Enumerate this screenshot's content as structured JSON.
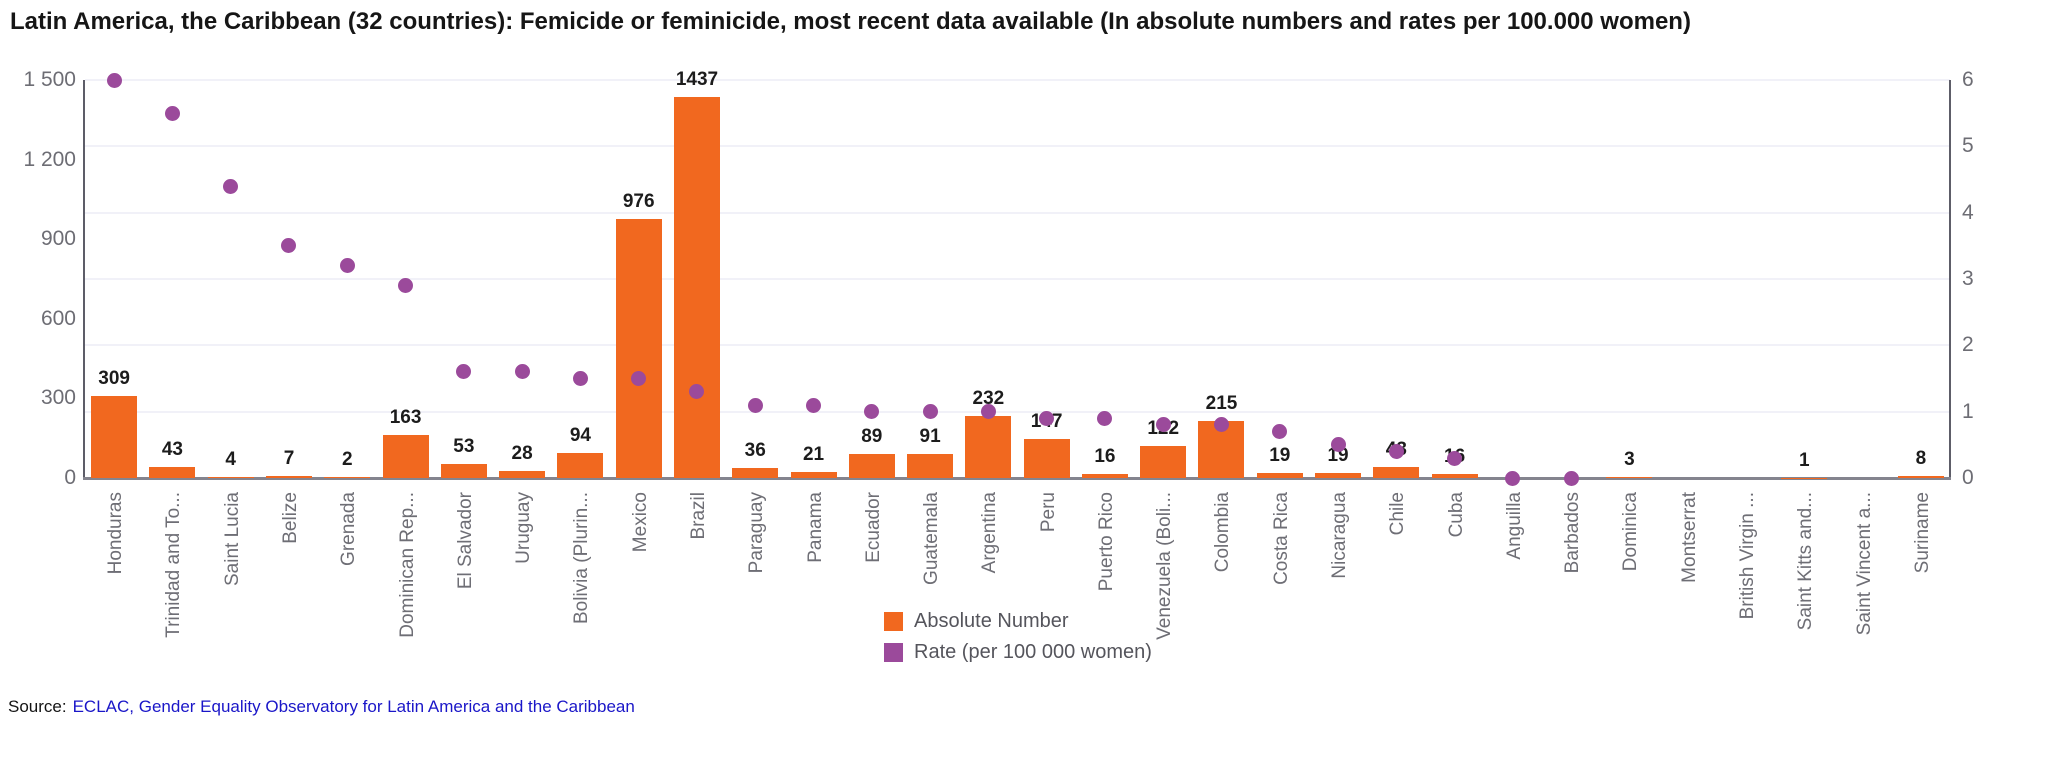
{
  "title": "Latin America, the Caribbean (32 countries): Femicide or feminicide, most recent data available (In absolute numbers and rates per 100.000 women)",
  "legend": {
    "absolute_label": "Absolute Number",
    "rate_label": "Rate (per 100 000 women)"
  },
  "source": {
    "prefix": "Source:",
    "link_text": "ECLAC, Gender Equality Observatory for Latin America and the Caribbean"
  },
  "colors": {
    "bar": "#f1681f",
    "dot": "#9b4a9b",
    "gridline": "#f1f1f8",
    "axis": "#5d5d68",
    "baseline": "#84848e",
    "tick_text": "#6d6d74",
    "x_label_text": "#6e6e75",
    "value_label_text": "#1c1c1c",
    "link": "#1a16c8"
  },
  "chart_data": {
    "type": "bar",
    "title": "Latin America, the Caribbean (32 countries): Femicide or feminicide, most recent data available (In absolute numbers and rates per 100.000 women)",
    "categories": [
      "Honduras",
      "Trinidad and To...",
      "Saint Lucia",
      "Belize",
      "Grenada",
      "Dominican Rep...",
      "El Salvador",
      "Uruguay",
      "Bolivia (Plurin...",
      "Mexico",
      "Brazil",
      "Paraguay",
      "Panama",
      "Ecuador",
      "Guatemala",
      "Argentina",
      "Peru",
      "Puerto Rico",
      "Venezuela (Boli...",
      "Colombia",
      "Costa Rica",
      "Nicaragua",
      "Chile",
      "Cuba",
      "Anguilla",
      "Barbados",
      "Dominica",
      "Montserrat",
      "British Virgin ...",
      "Saint Kitts and...",
      "Saint Vincent a...",
      "Suriname"
    ],
    "series": [
      {
        "name": "Absolute Number",
        "type": "bar",
        "axis": "left",
        "values": [
          309,
          43,
          4,
          7,
          2,
          163,
          53,
          28,
          94,
          976,
          1437,
          36,
          21,
          89,
          91,
          232,
          147,
          16,
          122,
          215,
          19,
          19,
          43,
          16,
          null,
          null,
          3,
          null,
          null,
          1,
          null,
          8
        ]
      },
      {
        "name": "Rate (per 100 000 women)",
        "type": "scatter",
        "axis": "right",
        "values": [
          6.0,
          5.5,
          4.4,
          3.5,
          3.2,
          2.9,
          1.6,
          1.6,
          1.5,
          1.5,
          1.3,
          1.1,
          1.1,
          1.0,
          1.0,
          1.0,
          0.9,
          0.9,
          0.8,
          0.8,
          0.7,
          0.5,
          0.4,
          0.3,
          0.0,
          0.0,
          null,
          null,
          null,
          null,
          null,
          null
        ]
      }
    ],
    "left_axis": {
      "range": [
        0,
        1500
      ],
      "ticks": [
        {
          "label": "0",
          "value": 0
        },
        {
          "label": "300",
          "value": 300
        },
        {
          "label": "600",
          "value": 600
        },
        {
          "label": "900",
          "value": 900
        },
        {
          "label": "1 200",
          "value": 1200
        },
        {
          "label": "1 500",
          "value": 1500
        }
      ]
    },
    "right_axis": {
      "range": [
        0,
        6
      ],
      "ticks": [
        {
          "label": "0",
          "value": 0
        },
        {
          "label": "1",
          "value": 1
        },
        {
          "label": "2",
          "value": 2
        },
        {
          "label": "3",
          "value": 3
        },
        {
          "label": "4",
          "value": 4
        },
        {
          "label": "5",
          "value": 5
        },
        {
          "label": "6",
          "value": 6
        }
      ]
    },
    "grid": true,
    "legend_position": "bottom-center"
  }
}
